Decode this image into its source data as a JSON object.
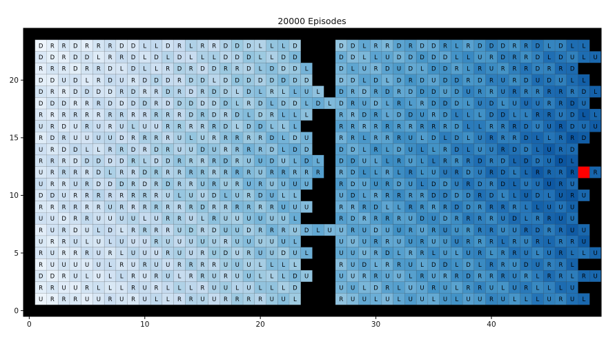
{
  "chart_data": {
    "type": "heatmap",
    "title": "20000 Episodes",
    "xlabel": "",
    "ylabel": "",
    "xlim": [
      -0.5,
      49.5
    ],
    "ylim": [
      -0.5,
      24.5
    ],
    "x_ticks": [
      0,
      10,
      20,
      30,
      40
    ],
    "y_ticks": [
      0,
      5,
      10,
      15,
      20
    ],
    "colormap": "Blues",
    "goal_color": "#ff0000",
    "wall_color": "#000000",
    "goal_cell": {
      "x": 48,
      "y": 12
    },
    "corridor_row": 12,
    "rooms": [
      {
        "name": "left",
        "x_start": 1,
        "policy": [
          "DRRDRRRDDLLDRLRRDDDLLLD",
          "DDRDDLRRDLDLDLLLDDDLLDD",
          "RRRDRRDLDLLRDRDDRRDLDDDL",
          "DDUDLRDURDDDRDDLDDDDDDDD",
          "DRRDDDDRDRRDRDRDDLDLRLLUL",
          "DDDRRRDDDDRDDDDDDLRDLDDLDL",
          "RRRRRRRRRRRRRDRDRDLDRLLL",
          "URDURURULUURRRRRDLDDLLL",
          "RDRUUUUDRRRRULURRRRRDLDU",
          "URDDLLRRDRDRUUDURRRRDLDD",
          "RRRDDDDDRLDDRRRRDRUUDULDL",
          "URRRRDLRRDRRRRRRRRRURRRRR",
          "URRURDDDRDRDRRURURURUUUU",
          "DDURRRRRRRRULUUDLURDULL",
          "RRRRRRURRRRRRRDRRRRRRUUU",
          "UUDRRUUUULURRULRUUUUUUL",
          "RURDULDLRRRRUDRDUUDRRRUDLU",
          "URRULULUUURUUUUURUUUUUL",
          "RURRRURLUUURUURUDURUUDUL",
          "RUUUUULRURUURRRRUUULLLL",
          "DDRULULLRURULRRURUULLLDU",
          "RRUURLLLRURLLLRUULULLLD",
          "URRRUURURULLRRUURRRRUUL"
        ]
      },
      {
        "name": "right",
        "x_start": 27,
        "policy": [
          "DDLRRDRDDRLRDDDRRDLDLL",
          "DDLLUDDDDDLLURDRRDLDULUL",
          "DLURDUDLDDRLRURRRDRRD",
          "DDLDLDRDUDDRDRURDUDULL",
          "DRDRDRDDDUDURRURRRRRRDL",
          "DRUDLRLRDDDLUDLUUURRDU",
          "RRDRLDDURDLLLDDLLRRUDLL",
          "RRRRRRRRRRDLLRRRDUURDUU",
          "RRLRRRULDLDLURRRDLLRRD",
          "DDLRLDULLRDLUURDDLURD",
          "DDULLRULLRRRDRDLDDUDL",
          "RDLLRLRLUURDURDLLRRRRRR",
          "RDUURDULDDURDRDLUUURU",
          "UDLRRRRRDDDDRDLLUDLURU",
          "RRRDLLRRRRDDRRRRLLUUU",
          "RDRRRRUDUDRRRRUDLRRUU",
          "URUDUURURUURRRUURDRRUU",
          "UUURRUURUUURRRLRURLRRU",
          "UUURDLRRLULURLRRULURLLU",
          "RUDLRRULDDLDLRRUDURRL",
          "UURRUULRURRDRRRURLRRLRUD",
          "UULDRLUURULRRULURLLLU",
          "RUULULUULULUURULLLURUL"
        ]
      }
    ]
  }
}
